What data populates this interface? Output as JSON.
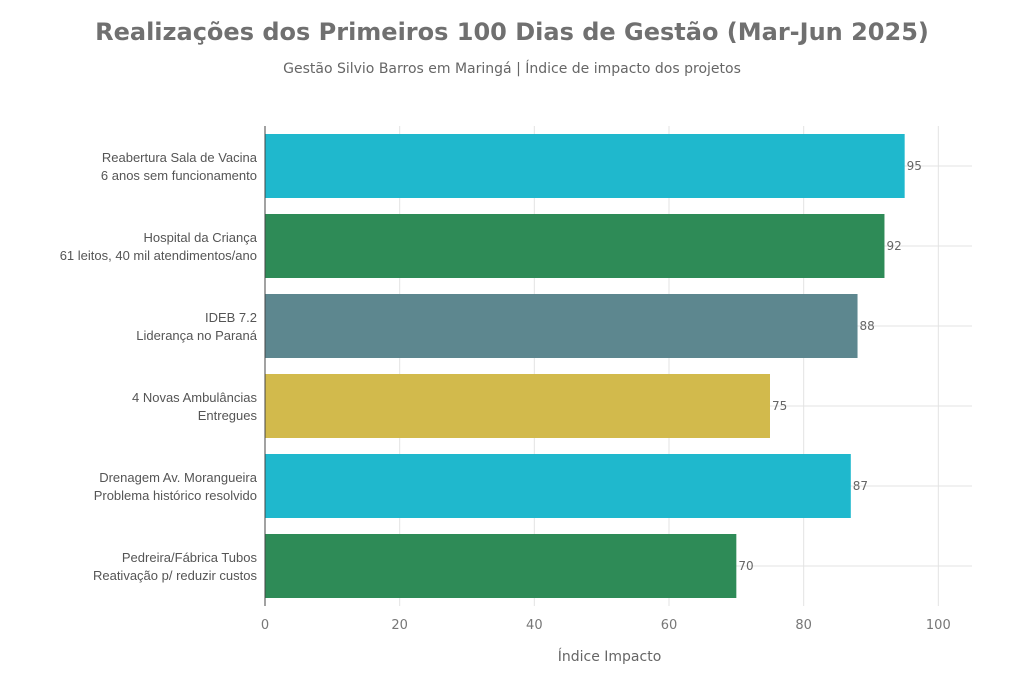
{
  "chart_data": {
    "type": "bar",
    "orientation": "horizontal",
    "title": "Realizações dos Primeiros 100 Dias de Gestão (Mar-Jun 2025)",
    "subtitle": "Gestão Silvio Barros em Maringá | Índice de impacto dos projetos",
    "xlabel": "Índice Impacto",
    "ylabel": "",
    "xlim": [
      0,
      105
    ],
    "xticks": [
      0,
      20,
      40,
      60,
      80,
      100
    ],
    "grid": true,
    "categories": [
      [
        "Reabertura Sala de Vacina",
        "6 anos sem funcionamento"
      ],
      [
        "Hospital da Criança",
        "61 leitos, 40 mil atendimentos/ano"
      ],
      [
        "IDEB 7.2",
        "Liderança no Paraná"
      ],
      [
        "4 Novas Ambulâncias",
        "Entregues"
      ],
      [
        "Drenagem Av. Morangueira",
        "Problema histórico resolvido"
      ],
      [
        "Pedreira/Fábrica Tubos",
        "Reativação p/ reduzir custos"
      ]
    ],
    "values": [
      95,
      92,
      88,
      75,
      87,
      70
    ],
    "colors": [
      "#1fb8cd",
      "#2e8b57",
      "#5d878f",
      "#d2ba4c",
      "#1fb8cd",
      "#2e8b57"
    ]
  }
}
